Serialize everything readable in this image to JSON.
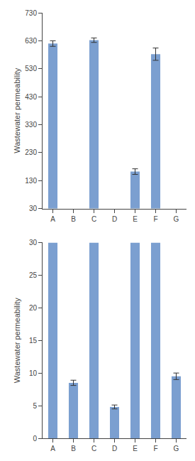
{
  "chart_data": [
    {
      "type": "bar",
      "categories": [
        "A",
        "B",
        "C",
        "D",
        "E",
        "F",
        "G"
      ],
      "values": [
        620,
        null,
        632,
        null,
        162,
        582,
        null
      ],
      "errors": [
        10,
        null,
        8,
        null,
        10,
        22,
        null
      ],
      "color": "#7B9FD0",
      "ylabel": "Wastewater permeability",
      "ylim": [
        30,
        730
      ],
      "yticks": [
        30,
        130,
        230,
        330,
        430,
        530,
        630,
        730
      ],
      "grid": false
    },
    {
      "type": "bar",
      "categories": [
        "A",
        "B",
        "C",
        "D",
        "E",
        "F",
        "G"
      ],
      "values": [
        30,
        8.5,
        30,
        4.8,
        30,
        30,
        9.5
      ],
      "errors": [
        0.0,
        0.4,
        0.0,
        0.3,
        0.0,
        0.0,
        0.5
      ],
      "color": "#7B9FD0",
      "ylabel": "Wastewater permeability",
      "ylim": [
        0,
        30
      ],
      "yticks": [
        0,
        5,
        10,
        15,
        20,
        25,
        30
      ],
      "grid": false
    }
  ]
}
